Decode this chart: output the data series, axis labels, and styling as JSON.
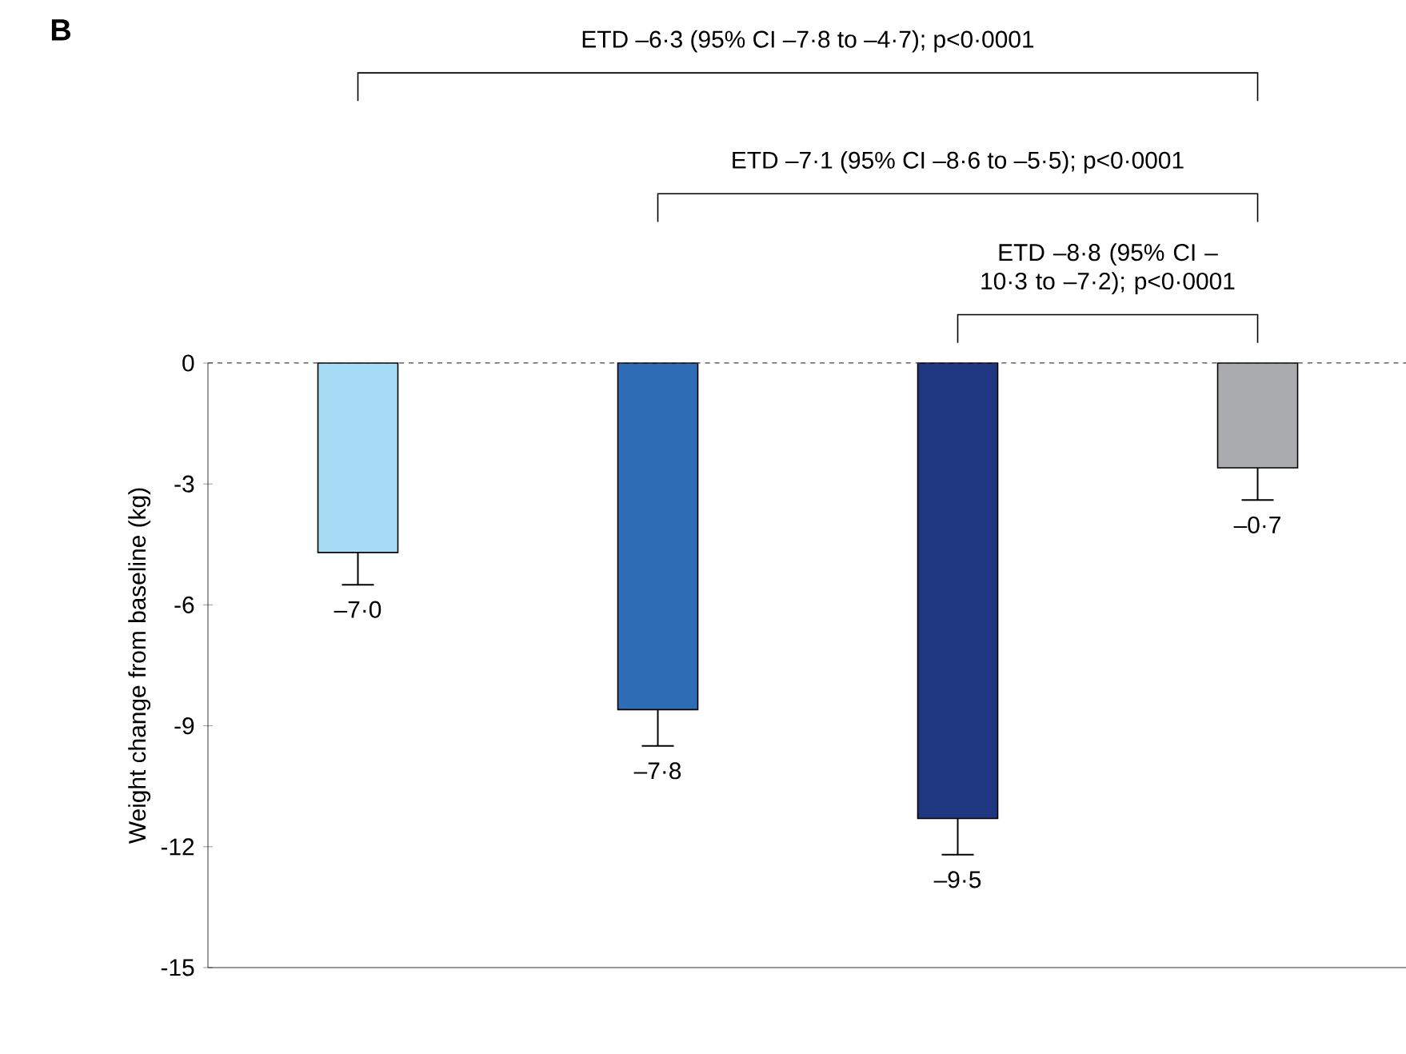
{
  "chart_data": {
    "type": "bar",
    "title": "B",
    "ylabel": "Weight change from baseline (kg)",
    "categories": [
      null,
      null,
      null,
      null
    ],
    "values": [
      -4.7,
      -8.6,
      -11.3,
      -2.6
    ],
    "colors": [
      "#a6dcf5",
      "#2e6db5",
      "#1f3780",
      "#a9abae"
    ],
    "errors": [
      [
        -5.5,
        -4.7
      ],
      [
        -9.5,
        -8.6
      ],
      [
        -12.2,
        -11.3
      ],
      [
        -3.4,
        -2.6
      ]
    ],
    "value_labels": [
      "–7·0",
      "–7·8",
      "–9·5",
      "–0·7"
    ],
    "ylim": [
      -15,
      0
    ],
    "yticks": [
      0,
      -3,
      -6,
      -9,
      -12,
      -15
    ],
    "ref_lines": [
      {
        "axis": "y",
        "value": 0,
        "line_style": "dashed",
        "color": "#444444"
      }
    ],
    "annotations": [
      "ETD –6·3 (95% CI –7·8 to –4·7); p<0·0001",
      "ETD –7·1 (95% CI –8·6 to –5·5); p<0·0001",
      "ETD –8·8 (95% CI –10·3 to –7·2); p<0·0001"
    ],
    "grid": false
  }
}
